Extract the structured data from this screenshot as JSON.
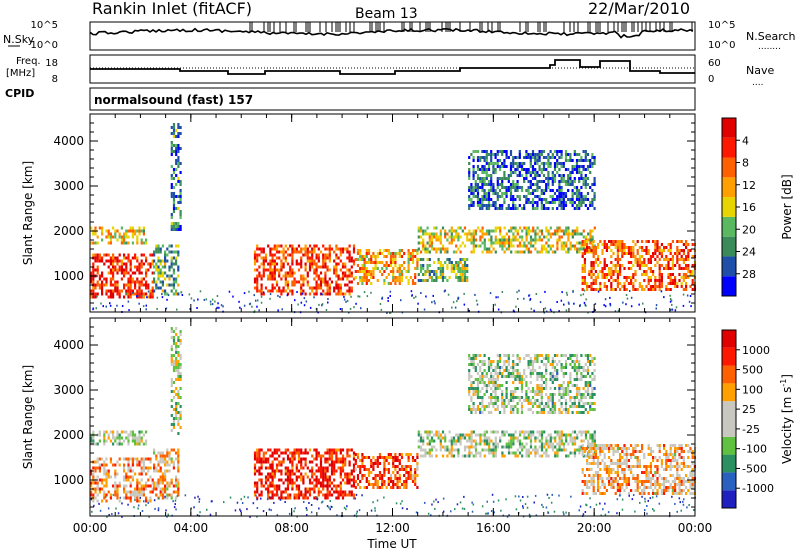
{
  "header": {
    "station": "Rankin Inlet (fitACF)",
    "beam": "Beam 13",
    "date": "22/Mar/2010"
  },
  "strip_labels": {
    "nsky": "N.Sky",
    "nsearch": "N.Search",
    "nsearch_marker": "........",
    "freq_line1": "Freq.",
    "freq_line2": "[MHz]",
    "nave": "Nave",
    "nave_marker": "....",
    "cpid": "CPID",
    "cpid_value": "normalsound (fast) 157"
  },
  "strip_ticks": {
    "nsky_top": "10^5",
    "nsky_bottom": "10^0",
    "nsearch_top": "10^5",
    "nsearch_bottom": "10^0",
    "freq_top": "18",
    "freq_bottom": "8",
    "nave_top": "60",
    "nave_bottom": "0"
  },
  "colors": {
    "power_scale": [
      "#0000ff",
      "#1f4fa8",
      "#3b8a5a",
      "#5ab860",
      "#e8d400",
      "#ffa000",
      "#ff6000",
      "#ff1800",
      "#e00000"
    ],
    "velocity_scale": [
      "#2020c0",
      "#2a60c0",
      "#2a9060",
      "#60c040",
      "#c8c8c0",
      "#c8c8c0",
      "#ffa000",
      "#ff6000",
      "#ff1800",
      "#e00000"
    ]
  },
  "chart_data": [
    {
      "type": "heatmap",
      "name": "power",
      "xlabel": "",
      "ylabel": "Slant Range [km]",
      "x_ticks": [
        "00:00",
        "04:00",
        "08:00",
        "12:00",
        "16:00",
        "20:00",
        "00:00"
      ],
      "xlim": [
        0,
        24
      ],
      "y_ticks": [
        1000,
        2000,
        3000,
        4000
      ],
      "ylim": [
        200,
        4600
      ],
      "colorbar_label": "Power [dB]",
      "colorbar_ticks": [
        4,
        8,
        12,
        16,
        20,
        24,
        28
      ],
      "blobs": [
        {
          "x0": 0.0,
          "x1": 2.5,
          "y0": 500,
          "y1": 1500,
          "level": 0.85
        },
        {
          "x0": 0.0,
          "x1": 2.2,
          "y0": 1700,
          "y1": 2100,
          "level": 0.55
        },
        {
          "x0": 2.5,
          "x1": 3.5,
          "y0": 600,
          "y1": 1700,
          "level": 0.35
        },
        {
          "x0": 6.5,
          "x1": 10.5,
          "y0": 600,
          "y1": 1700,
          "level": 0.8
        },
        {
          "x0": 10.5,
          "x1": 13.0,
          "y0": 800,
          "y1": 1600,
          "level": 0.6
        },
        {
          "x0": 13.0,
          "x1": 20.0,
          "y0": 1500,
          "y1": 2100,
          "level": 0.5
        },
        {
          "x0": 13.0,
          "x1": 15.0,
          "y0": 900,
          "y1": 1400,
          "level": 0.4
        },
        {
          "x0": 15.0,
          "x1": 20.0,
          "y0": 2500,
          "y1": 3800,
          "level": 0.2
        },
        {
          "x0": 19.5,
          "x1": 24.0,
          "y0": 700,
          "y1": 1800,
          "level": 0.75
        },
        {
          "x0": 3.2,
          "x1": 3.6,
          "y0": 2000,
          "y1": 4400,
          "level": 0.25
        }
      ]
    },
    {
      "type": "heatmap",
      "name": "velocity",
      "xlabel": "Time UT",
      "ylabel": "Slant Range [km]",
      "x_ticks": [
        "00:00",
        "04:00",
        "08:00",
        "12:00",
        "16:00",
        "20:00",
        "00:00"
      ],
      "xlim": [
        0,
        24
      ],
      "y_ticks": [
        1000,
        2000,
        3000,
        4000
      ],
      "ylim": [
        200,
        4600
      ],
      "colorbar_label": "Velocity [m s^-1]",
      "colorbar_ticks": [
        1000,
        500,
        100,
        25,
        -25,
        -100,
        -500,
        -1000
      ],
      "blobs": [
        {
          "x0": 0.0,
          "x1": 2.5,
          "y0": 500,
          "y1": 1500,
          "level": 0.65
        },
        {
          "x0": 0.0,
          "x1": 2.2,
          "y0": 1800,
          "y1": 2100,
          "level": 0.45
        },
        {
          "x0": 2.5,
          "x1": 3.5,
          "y0": 600,
          "y1": 1700,
          "level": 0.6
        },
        {
          "x0": 6.5,
          "x1": 10.5,
          "y0": 600,
          "y1": 1700,
          "level": 0.9
        },
        {
          "x0": 10.5,
          "x1": 13.0,
          "y0": 800,
          "y1": 1600,
          "level": 0.8
        },
        {
          "x0": 13.0,
          "x1": 20.0,
          "y0": 1500,
          "y1": 2100,
          "level": 0.45
        },
        {
          "x0": 15.0,
          "x1": 20.0,
          "y0": 2500,
          "y1": 3800,
          "level": 0.42
        },
        {
          "x0": 19.5,
          "x1": 24.0,
          "y0": 700,
          "y1": 1800,
          "level": 0.62
        },
        {
          "x0": 3.2,
          "x1": 3.6,
          "y0": 2000,
          "y1": 4400,
          "level": 0.45
        }
      ]
    }
  ]
}
